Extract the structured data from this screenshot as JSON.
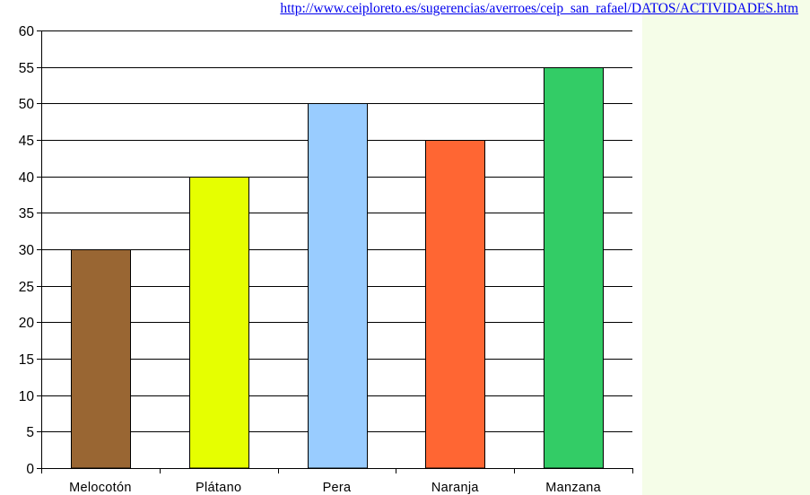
{
  "source_link": "http://www.ceiploreto.es/sugerencias/averroes/ceip_san_rafael/DATOS/ACTIVIDADES.htm",
  "chart_data": {
    "type": "bar",
    "categories": [
      "Melocotón",
      "Plátano",
      "Pera",
      "Naranja",
      "Manzana"
    ],
    "values": [
      30,
      40,
      50,
      45,
      55
    ],
    "colors": [
      "#996633",
      "#e6ff00",
      "#99ccff",
      "#ff6633",
      "#33cc66"
    ],
    "ylim": [
      0,
      60
    ],
    "yticks": [
      "0",
      "5",
      "10",
      "15",
      "20",
      "25",
      "30",
      "35",
      "40",
      "45",
      "50",
      "55",
      "60"
    ],
    "grid": true,
    "legend": "none"
  }
}
